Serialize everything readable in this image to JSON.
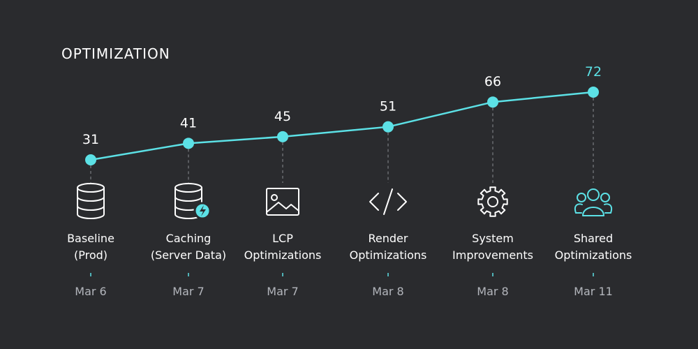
{
  "colors": {
    "background": "#2a2b2e",
    "line": "#5ce1e6",
    "highlight": "#5ce1e6",
    "text": "#ffffff",
    "muted": "#b3b6bc",
    "dash": "#8a8d93",
    "icon": "#ffffff"
  },
  "chart_data": {
    "type": "line",
    "title": "OPTIMIZATION",
    "xlabel": "",
    "ylabel": "",
    "ylim": [
      25,
      75
    ],
    "grid": false,
    "categories": [
      {
        "line1": "Baseline",
        "line2": "(Prod)",
        "date": "Mar 6",
        "icon": "database-icon"
      },
      {
        "line1": "Caching",
        "line2": "(Server Data)",
        "date": "Mar 7",
        "icon": "database-bolt-icon"
      },
      {
        "line1": "LCP",
        "line2": "Optimizations",
        "date": "Mar 7",
        "icon": "image-icon"
      },
      {
        "line1": "Render",
        "line2": "Optimizations",
        "date": "Mar 8",
        "icon": "code-icon"
      },
      {
        "line1": "System",
        "line2": "Improvements",
        "date": "Mar 8",
        "icon": "gear-icon"
      },
      {
        "line1": "Shared",
        "line2": "Optimizations",
        "date": "Mar 11",
        "icon": "users-icon"
      }
    ],
    "series": [
      {
        "values": [
          31,
          41,
          45,
          51,
          66,
          72
        ]
      }
    ],
    "highlight_index": 5
  }
}
